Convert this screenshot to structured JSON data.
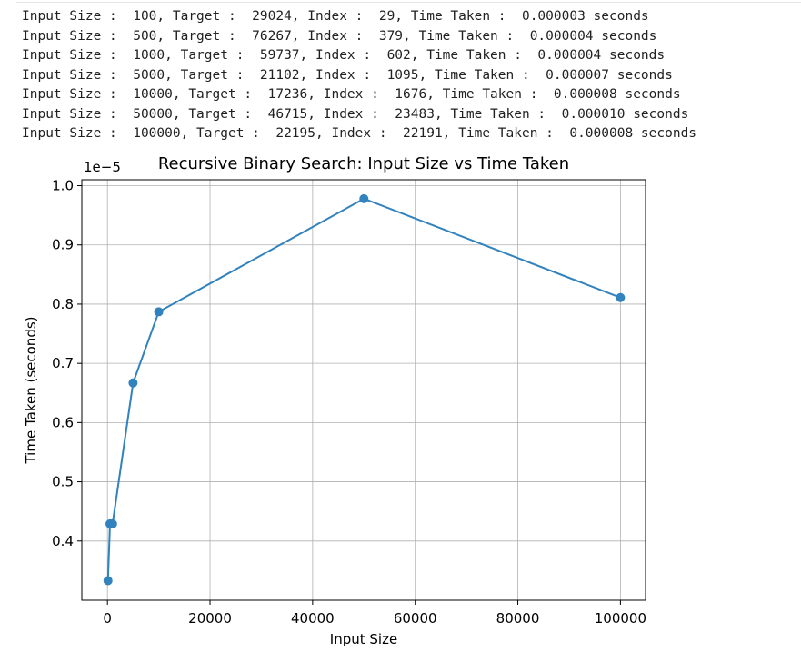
{
  "output": {
    "lines": [
      "Input Size :  100, Target :  29024, Index :  29, Time Taken :  0.000003 seconds",
      "Input Size :  500, Target :  76267, Index :  379, Time Taken :  0.000004 seconds",
      "Input Size :  1000, Target :  59737, Index :  602, Time Taken :  0.000004 seconds",
      "Input Size :  5000, Target :  21102, Index :  1095, Time Taken :  0.000007 seconds",
      "Input Size :  10000, Target :  17236, Index :  1676, Time Taken :  0.000008 seconds",
      "Input Size :  50000, Target :  46715, Index :  23483, Time Taken :  0.000010 seconds",
      "Input Size :  100000, Target :  22195, Index :  22191, Time Taken :  0.000008 seconds"
    ]
  },
  "chart_data": {
    "type": "line",
    "title": "Recursive Binary Search: Input Size vs Time Taken",
    "xlabel": "Input Size",
    "ylabel": "Time Taken (seconds)",
    "y_offset_label": "1e−5",
    "x": [
      100,
      500,
      1000,
      5000,
      10000,
      50000,
      100000
    ],
    "y": [
      3.33e-06,
      4.29e-06,
      4.29e-06,
      6.67e-06,
      7.87e-06,
      9.78e-06,
      8.11e-06
    ],
    "xlim": [
      -4995,
      104895
    ],
    "ylim": [
      3e-06,
      1.01e-05
    ],
    "x_ticks": [
      0,
      20000,
      40000,
      60000,
      80000,
      100000
    ],
    "x_tick_labels": [
      "0",
      "20000",
      "40000",
      "60000",
      "80000",
      "100000"
    ],
    "y_ticks": [
      4e-06,
      5e-06,
      6e-06,
      7e-06,
      8e-06,
      9e-06,
      1e-05
    ],
    "y_tick_labels": [
      "0.4",
      "0.5",
      "0.6",
      "0.7",
      "0.8",
      "0.9",
      "1.0"
    ],
    "grid": true,
    "marker": "circle",
    "color": "#3182bd"
  }
}
